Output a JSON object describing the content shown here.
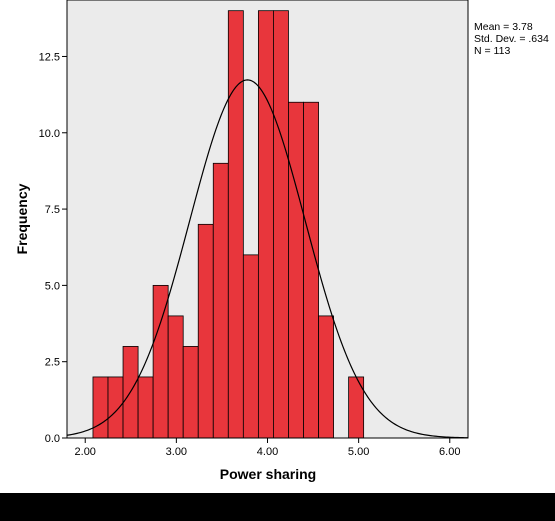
{
  "chart_data": {
    "type": "bar",
    "subtype": "histogram",
    "xlabel": "Power sharing",
    "ylabel": "Frequency",
    "xlim": [
      1.8,
      6.2
    ],
    "ylim": [
      0,
      14.35
    ],
    "x_ticks": [
      "2.00",
      "3.00",
      "4.00",
      "5.00",
      "6.00"
    ],
    "y_ticks": [
      "0.0",
      "2.5",
      "5.0",
      "7.5",
      "10.0",
      "12.5"
    ],
    "bin_width": 0.165,
    "bins": [
      {
        "start": 2.085,
        "value": 2
      },
      {
        "start": 2.25,
        "value": 2
      },
      {
        "start": 2.415,
        "value": 3
      },
      {
        "start": 2.58,
        "value": 2
      },
      {
        "start": 2.745,
        "value": 5
      },
      {
        "start": 2.91,
        "value": 4
      },
      {
        "start": 3.075,
        "value": 3
      },
      {
        "start": 3.24,
        "value": 7
      },
      {
        "start": 3.405,
        "value": 9
      },
      {
        "start": 3.57,
        "value": 14
      },
      {
        "start": 3.735,
        "value": 6
      },
      {
        "start": 3.9,
        "value": 14
      },
      {
        "start": 4.065,
        "value": 14
      },
      {
        "start": 4.23,
        "value": 11
      },
      {
        "start": 4.395,
        "value": 11
      },
      {
        "start": 4.56,
        "value": 4
      },
      {
        "start": 4.725,
        "value": 0
      },
      {
        "start": 4.89,
        "value": 2
      }
    ],
    "normal_curve": {
      "mean": 3.78,
      "sd": 0.634,
      "n": 113
    },
    "stats_labels": [
      "Mean = 3.78",
      "Std. Dev. = .634",
      "N = 113"
    ],
    "bar_color": "#e8363c",
    "plot_background": "#ebebeb",
    "grid": false,
    "legend": "none"
  }
}
